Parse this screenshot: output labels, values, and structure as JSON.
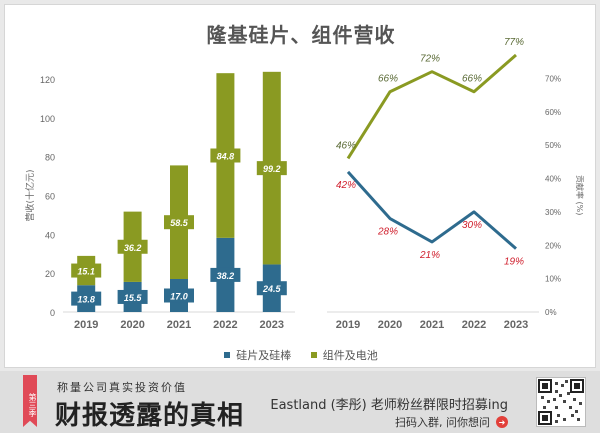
{
  "title": "隆基硅片、组件营收",
  "colors": {
    "wafer": "#2e6b8e",
    "module": "#8a9a22",
    "label_red": "#d0202e",
    "label_green": "#5a6a35",
    "axis_text": "#666666"
  },
  "legend": [
    {
      "label": "硅片及硅棒",
      "series": "wafer"
    },
    {
      "label": "组件及电池",
      "series": "module"
    }
  ],
  "chart_data": [
    {
      "type": "bar",
      "stacked": true,
      "categories": [
        "2019",
        "2020",
        "2021",
        "2022",
        "2023"
      ],
      "series": [
        {
          "name": "硅片及硅棒",
          "values": [
            13.8,
            15.5,
            17.0,
            38.2,
            24.5
          ]
        },
        {
          "name": "组件及电池",
          "values": [
            15.1,
            36.2,
            58.5,
            84.8,
            99.2
          ]
        }
      ],
      "ylabel": "营收(十亿元)",
      "ylim": [
        0,
        120
      ],
      "yticks": [
        "0",
        "20",
        "40",
        "60",
        "80",
        "100",
        "120"
      ],
      "grid": false
    },
    {
      "type": "line",
      "categories": [
        "2019",
        "2020",
        "2021",
        "2022",
        "2023"
      ],
      "series": [
        {
          "name": "组件及电池",
          "values": [
            46,
            66,
            72,
            66,
            77
          ],
          "labels": [
            "46%",
            "66%",
            "72%",
            "66%",
            "77%"
          ]
        },
        {
          "name": "硅片及硅棒",
          "values": [
            42,
            28,
            21,
            30,
            19
          ],
          "labels": [
            "42%",
            "28%",
            "21%",
            "30%",
            "19%"
          ]
        }
      ],
      "ylabel": "贡献率 (%)",
      "ylim": [
        0,
        80
      ],
      "yticks": [
        "0%",
        "10%",
        "20%",
        "30%",
        "40%",
        "50%",
        "60%",
        "70%"
      ],
      "grid": false
    }
  ],
  "banner": {
    "badge": "第三季",
    "slogan_small": "称量公司真实投资价值",
    "slogan_big": "财报透露的真相",
    "promo_main": "Eastland (李彤) 老师粉丝群限时招募ing",
    "promo_sub": "扫码入群, 问你想问"
  }
}
